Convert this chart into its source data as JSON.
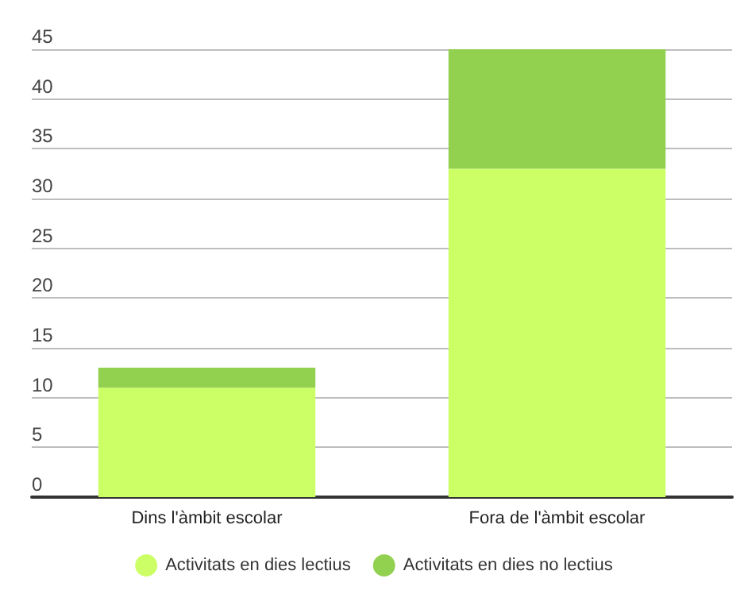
{
  "chart_data": {
    "type": "bar",
    "stacked": true,
    "categories": [
      "Dins l'àmbit escolar",
      "Fora de l'àmbit escolar"
    ],
    "series": [
      {
        "name": "Activitats en dies lectius",
        "color": "#ccff66",
        "values": [
          11,
          33
        ]
      },
      {
        "name": "Activitats en dies no lectius",
        "color": "#92d050",
        "values": [
          2,
          12
        ]
      }
    ],
    "ylim": [
      0,
      45
    ],
    "yticks": [
      0,
      5,
      10,
      15,
      20,
      25,
      30,
      35,
      40,
      45
    ],
    "grid": "y",
    "legend": "bottom"
  }
}
